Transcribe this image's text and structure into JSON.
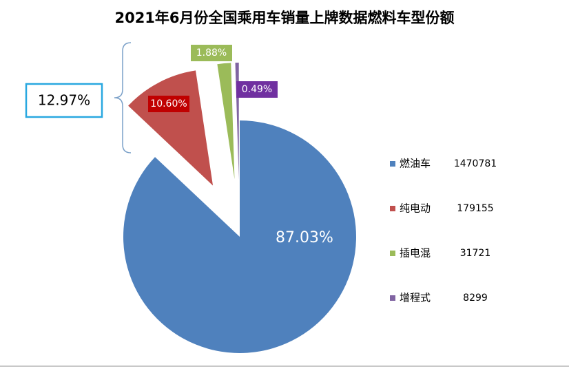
{
  "chart_data": {
    "type": "pie",
    "title": "2021年6月份全国乘用车销量上牌数据燃料车型份额",
    "categories": [
      "燃油车",
      "纯电动",
      "插电混",
      "增程式"
    ],
    "values": [
      87.03,
      10.6,
      1.88,
      0.49
    ],
    "value_labels": [
      "87.03%",
      "10.60%",
      "1.88%",
      "0.49%"
    ],
    "counts": [
      1470781,
      179155,
      31721,
      8299
    ],
    "colors": [
      "#4f81bd",
      "#c0504d",
      "#9bbb59",
      "#8064a2"
    ],
    "annotations": [
      "12.97%"
    ],
    "legend": "right"
  }
}
